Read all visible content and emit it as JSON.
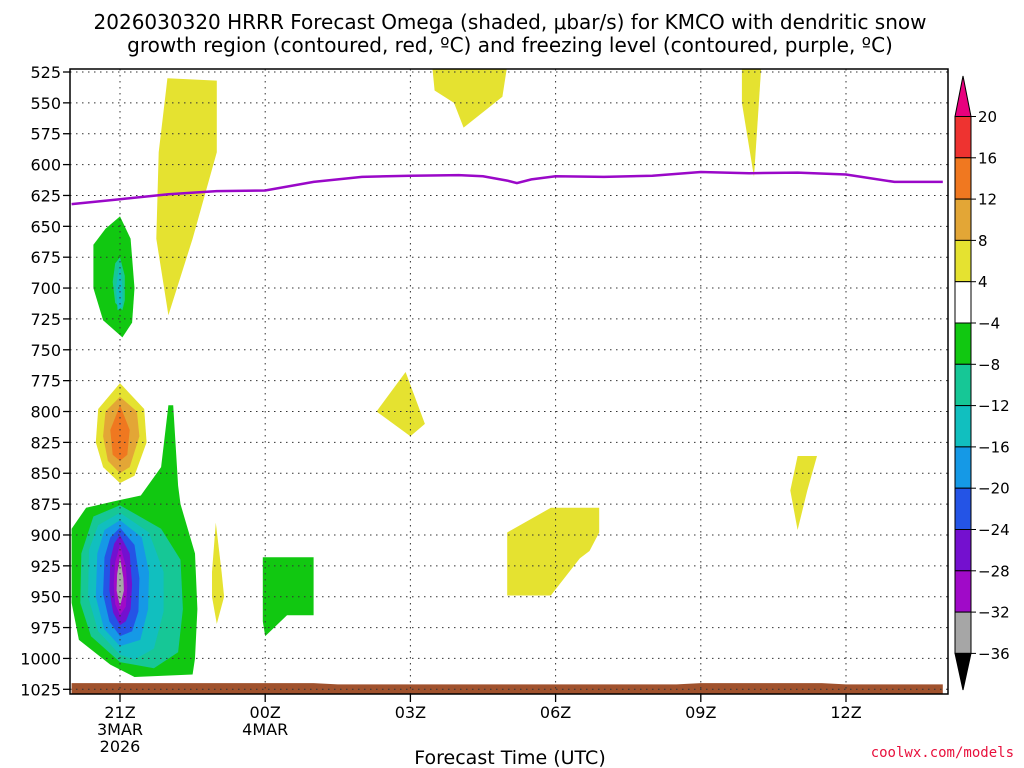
{
  "chart_data": {
    "type": "heatmap",
    "title_line1": "2026030320 HRRR Forecast Omega (shaded, μbar/s) for KMCO with dendritic snow",
    "title_line2": "growth region (contoured, red, ºC) and freezing level (contoured, purple, ºC)",
    "xlabel": "Forecast Time (UTC)",
    "credit": "coolwx.com/models",
    "x_range_hours": [
      -1,
      17
    ],
    "y_range_hPa": [
      520,
      1025
    ],
    "y_ticks": [
      525,
      550,
      575,
      600,
      625,
      650,
      675,
      700,
      725,
      750,
      775,
      800,
      825,
      850,
      875,
      900,
      925,
      950,
      975,
      1000,
      1025
    ],
    "x_ticks": [
      {
        "hour": 0,
        "lines": [
          "21Z",
          "3MAR",
          "2026"
        ]
      },
      {
        "hour": 3,
        "lines": [
          "00Z",
          "4MAR"
        ]
      },
      {
        "hour": 6,
        "lines": [
          "03Z"
        ]
      },
      {
        "hour": 9,
        "lines": [
          "06Z"
        ]
      },
      {
        "hour": 12,
        "lines": [
          "09Z"
        ]
      },
      {
        "hour": 15,
        "lines": [
          "12Z"
        ]
      }
    ],
    "colorbar": {
      "labels": [
        "20",
        "16",
        "12",
        "8",
        "4",
        "−4",
        "−8",
        "−12",
        "−16",
        "−20",
        "−24",
        "−28",
        "−32",
        "−36"
      ],
      "colors": [
        "#e8007e",
        "#ee3330",
        "#f07820",
        "#e3a636",
        "#e5e230",
        "#ffffff",
        "#11c811",
        "#16c796",
        "#11bfbf",
        "#1599e6",
        "#2454e6",
        "#7410cf",
        "#a00ac8",
        "#a6a6a6",
        "#000000"
      ]
    },
    "omega_regions": [
      {
        "level": "4 to 8",
        "color": "#e5e230",
        "points": [
          [
            0.98,
            530
          ],
          [
            2.0,
            532
          ],
          [
            2.0,
            590
          ],
          [
            1.5,
            660
          ],
          [
            1.0,
            722
          ],
          [
            0.75,
            660
          ],
          [
            0.8,
            590
          ],
          [
            0.95,
            540
          ]
        ]
      },
      {
        "level": "4 to 8",
        "color": "#e5e230",
        "points": [
          [
            6.45,
            520
          ],
          [
            8.0,
            520
          ],
          [
            7.9,
            545
          ],
          [
            7.1,
            570
          ],
          [
            6.9,
            550
          ],
          [
            6.5,
            540
          ]
        ]
      },
      {
        "level": "4 to 8",
        "color": "#e5e230",
        "points": [
          [
            12.85,
            520
          ],
          [
            13.25,
            520
          ],
          [
            13.1,
            610
          ],
          [
            12.85,
            550
          ]
        ]
      },
      {
        "level": "4 to 8",
        "color": "#e5e230",
        "points": [
          [
            5.9,
            768
          ],
          [
            6.3,
            810
          ],
          [
            6.0,
            820
          ],
          [
            5.3,
            800
          ]
        ]
      },
      {
        "level": "4 to 8",
        "color": "#e5e230",
        "points": [
          [
            8.0,
            898
          ],
          [
            8.9,
            878
          ],
          [
            9.9,
            878
          ],
          [
            9.9,
            898
          ],
          [
            9.7,
            913
          ],
          [
            9.5,
            919
          ],
          [
            8.9,
            949
          ],
          [
            8.0,
            949
          ]
        ]
      },
      {
        "level": "4 to 8",
        "color": "#e5e230",
        "points": [
          [
            14.0,
            836
          ],
          [
            14.4,
            836
          ],
          [
            14.2,
            864
          ],
          [
            14.0,
            896
          ],
          [
            13.85,
            864
          ]
        ]
      },
      {
        "level": "4 to 8",
        "color": "#e5e230",
        "points": [
          [
            1.98,
            890
          ],
          [
            2.1,
            930
          ],
          [
            2.15,
            950
          ],
          [
            2.0,
            972
          ],
          [
            1.9,
            950
          ],
          [
            1.9,
            930
          ]
        ]
      },
      {
        "level": "4 to 8",
        "color": "#e5e230",
        "points": [
          [
            0.0,
            777
          ],
          [
            0.5,
            798
          ],
          [
            0.55,
            825
          ],
          [
            0.3,
            852
          ],
          [
            0.0,
            858
          ],
          [
            -0.35,
            845
          ],
          [
            -0.5,
            825
          ],
          [
            -0.45,
            798
          ]
        ]
      },
      {
        "level": "8 to 12",
        "color": "#e3a636",
        "points": [
          [
            0.0,
            788
          ],
          [
            0.35,
            800
          ],
          [
            0.4,
            820
          ],
          [
            0.2,
            845
          ],
          [
            0.0,
            850
          ],
          [
            -0.25,
            840
          ],
          [
            -0.35,
            820
          ],
          [
            -0.3,
            800
          ]
        ]
      },
      {
        "level": "12 to 16",
        "color": "#f07820",
        "points": [
          [
            0.0,
            795
          ],
          [
            0.2,
            815
          ],
          [
            0.15,
            835
          ],
          [
            0.0,
            840
          ],
          [
            -0.15,
            835
          ],
          [
            -0.2,
            815
          ]
        ]
      },
      {
        "level": "-4 to -8",
        "color": "#11c811",
        "points": [
          [
            0.0,
            642
          ],
          [
            0.22,
            660
          ],
          [
            0.3,
            700
          ],
          [
            0.25,
            728
          ],
          [
            0.05,
            740
          ],
          [
            -0.35,
            726
          ],
          [
            -0.55,
            700
          ],
          [
            -0.55,
            665
          ],
          [
            -0.3,
            652
          ]
        ]
      },
      {
        "level": "-8 to -12",
        "color": "#16c796",
        "points": [
          [
            0.0,
            675
          ],
          [
            0.1,
            690
          ],
          [
            0.1,
            710
          ],
          [
            0.05,
            718
          ],
          [
            -0.1,
            712
          ],
          [
            -0.15,
            695
          ],
          [
            -0.1,
            680
          ]
        ]
      },
      {
        "level": "-12 to -16",
        "color": "#11bfbf",
        "points": [
          [
            0.0,
            680
          ],
          [
            0.05,
            700
          ],
          [
            0.05,
            715
          ],
          [
            -0.05,
            718
          ],
          [
            -0.08,
            700
          ],
          [
            -0.05,
            690
          ]
        ]
      },
      {
        "level": "-4 to -8",
        "color": "#11c811",
        "points": [
          [
            0.43,
            868
          ],
          [
            0.85,
            845
          ],
          [
            1.0,
            795
          ],
          [
            1.1,
            795
          ],
          [
            1.2,
            860
          ],
          [
            1.25,
            875
          ],
          [
            1.55,
            915
          ],
          [
            1.6,
            960
          ],
          [
            1.55,
            1000
          ],
          [
            1.5,
            1013
          ],
          [
            0.3,
            1015
          ],
          [
            -0.2,
            1005
          ],
          [
            -0.85,
            985
          ],
          [
            -1.0,
            955
          ],
          [
            -1.0,
            895
          ],
          [
            -0.7,
            878
          ],
          [
            -0.15,
            873
          ]
        ]
      },
      {
        "level": "-4 to -8",
        "color": "#11c811",
        "points": [
          [
            2.95,
            918
          ],
          [
            4.0,
            918
          ],
          [
            4.0,
            965
          ],
          [
            3.45,
            965
          ],
          [
            3.0,
            982
          ],
          [
            2.95,
            970
          ]
        ]
      },
      {
        "level": "-8 to -12",
        "color": "#16c796",
        "points": [
          [
            0.0,
            876
          ],
          [
            0.85,
            895
          ],
          [
            1.25,
            920
          ],
          [
            1.3,
            960
          ],
          [
            1.2,
            995
          ],
          [
            0.7,
            1008
          ],
          [
            0.0,
            1003
          ],
          [
            -0.6,
            982
          ],
          [
            -0.82,
            955
          ],
          [
            -0.8,
            915
          ],
          [
            -0.55,
            885
          ]
        ]
      },
      {
        "level": "-12 to -16",
        "color": "#11bfbf",
        "points": [
          [
            0.0,
            882
          ],
          [
            0.6,
            898
          ],
          [
            0.9,
            930
          ],
          [
            0.9,
            962
          ],
          [
            0.7,
            992
          ],
          [
            0.3,
            1001
          ],
          [
            0.0,
            997
          ],
          [
            -0.45,
            978
          ],
          [
            -0.66,
            950
          ],
          [
            -0.64,
            912
          ],
          [
            -0.45,
            892
          ]
        ]
      },
      {
        "level": "-16 to -20",
        "color": "#1599e6",
        "points": [
          [
            0.0,
            888
          ],
          [
            0.45,
            902
          ],
          [
            0.6,
            930
          ],
          [
            0.58,
            960
          ],
          [
            0.42,
            985
          ],
          [
            0.0,
            990
          ],
          [
            -0.33,
            976
          ],
          [
            -0.5,
            950
          ],
          [
            -0.47,
            915
          ],
          [
            -0.32,
            896
          ]
        ]
      },
      {
        "level": "-20 to -24",
        "color": "#2454e6",
        "points": [
          [
            0.0,
            894
          ],
          [
            0.3,
            908
          ],
          [
            0.4,
            935
          ],
          [
            0.38,
            962
          ],
          [
            0.25,
            978
          ],
          [
            0.0,
            982
          ],
          [
            -0.22,
            970
          ],
          [
            -0.35,
            948
          ],
          [
            -0.32,
            918
          ],
          [
            -0.2,
            902
          ]
        ]
      },
      {
        "level": "-24 to -28",
        "color": "#7410cf",
        "points": [
          [
            0.0,
            900
          ],
          [
            0.2,
            915
          ],
          [
            0.25,
            940
          ],
          [
            0.22,
            960
          ],
          [
            0.12,
            970
          ],
          [
            0.0,
            973
          ],
          [
            -0.14,
            963
          ],
          [
            -0.22,
            945
          ],
          [
            -0.2,
            920
          ],
          [
            -0.12,
            907
          ]
        ]
      },
      {
        "level": "-28 to -32",
        "color": "#a00ac8",
        "points": [
          [
            0.0,
            908
          ],
          [
            0.12,
            925
          ],
          [
            0.15,
            942
          ],
          [
            0.12,
            958
          ],
          [
            0.0,
            965
          ],
          [
            -0.1,
            956
          ],
          [
            -0.13,
            940
          ],
          [
            -0.1,
            922
          ]
        ]
      },
      {
        "level": "-32 to -36",
        "color": "#a6a6a6",
        "points": [
          [
            0.0,
            918
          ],
          [
            0.07,
            935
          ],
          [
            0.08,
            945
          ],
          [
            0.0,
            958
          ],
          [
            -0.07,
            945
          ],
          [
            -0.06,
            932
          ]
        ]
      }
    ],
    "freezing_level": {
      "color": "#9a08c8",
      "points": [
        [
          -1,
          632
        ],
        [
          0,
          628
        ],
        [
          1,
          624
        ],
        [
          2,
          621.5
        ],
        [
          3,
          621
        ],
        [
          4,
          614
        ],
        [
          5,
          610
        ],
        [
          6,
          609
        ],
        [
          7,
          608.5
        ],
        [
          7.5,
          609.5
        ],
        [
          8,
          613
        ],
        [
          8.2,
          615
        ],
        [
          8.5,
          612
        ],
        [
          9,
          609.5
        ],
        [
          10,
          610
        ],
        [
          11,
          609
        ],
        [
          12,
          606
        ],
        [
          13,
          607
        ],
        [
          14,
          606.5
        ],
        [
          15,
          608
        ],
        [
          16,
          614
        ],
        [
          17,
          614
        ]
      ]
    },
    "ground": {
      "color": "#a0522d",
      "points": [
        [
          -1,
          1020
        ],
        [
          4,
          1020
        ],
        [
          4.5,
          1021
        ],
        [
          11.5,
          1021
        ],
        [
          12,
          1020
        ],
        [
          14.5,
          1020
        ],
        [
          15,
          1021
        ],
        [
          17,
          1021
        ]
      ]
    }
  }
}
